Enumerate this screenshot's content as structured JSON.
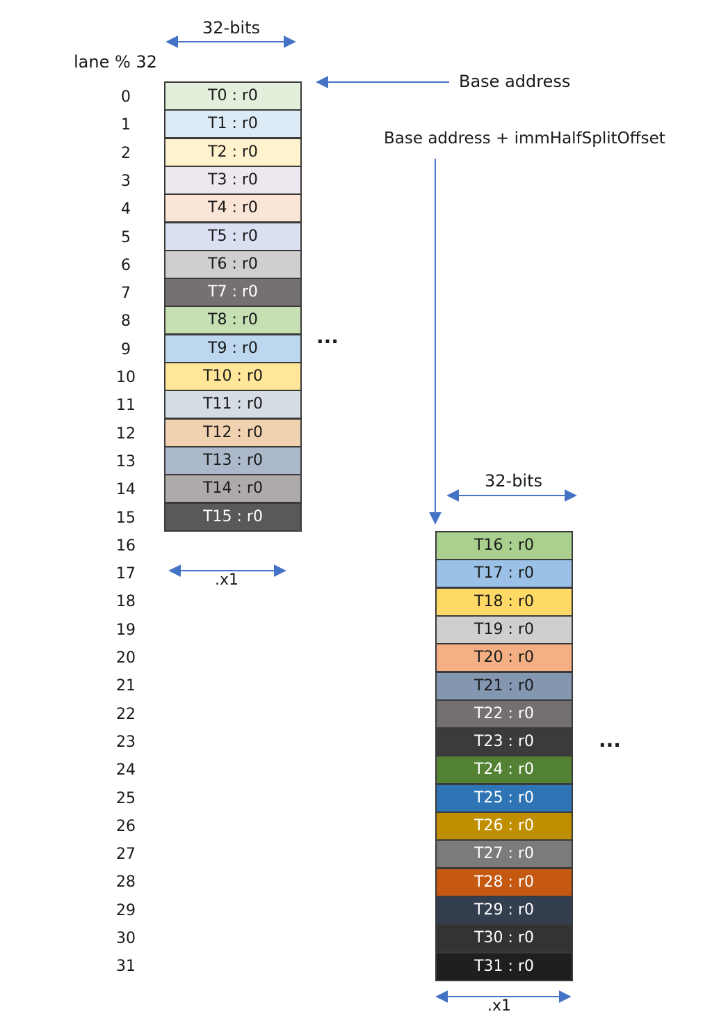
{
  "labels": {
    "width_top": "32-bits",
    "width_bottom": "32-bits",
    "lane_header": "lane % 32",
    "base_address": "Base address",
    "base_address_offset": "Base address + immHalfSplitOffset",
    "multiplier_left": ".x1",
    "multiplier_right": ".x1",
    "ellipsis_left": "...",
    "ellipsis_right": "..."
  },
  "lanes": [
    "0",
    "1",
    "2",
    "3",
    "4",
    "5",
    "6",
    "7",
    "8",
    "9",
    "10",
    "11",
    "12",
    "13",
    "14",
    "15",
    "16",
    "17",
    "18",
    "19",
    "20",
    "21",
    "22",
    "23",
    "24",
    "25",
    "26",
    "27",
    "28",
    "29",
    "30",
    "31"
  ],
  "cells_left": [
    {
      "text": "T0 : r0",
      "bg": "#e2efda",
      "fg": "#1a1a1a"
    },
    {
      "text": "T1 : r0",
      "bg": "#ddebf7",
      "fg": "#1a1a1a"
    },
    {
      "text": "T2 : r0",
      "bg": "#fff2cc",
      "fg": "#1a1a1a"
    },
    {
      "text": "T3 : r0",
      "bg": "#ede7ef",
      "fg": "#1a1a1a"
    },
    {
      "text": "T4 : r0",
      "bg": "#fbe5d6",
      "fg": "#1a1a1a"
    },
    {
      "text": "T5 : r0",
      "bg": "#dae0f2",
      "fg": "#1a1a1a"
    },
    {
      "text": "T6 : r0",
      "bg": "#d0cece",
      "fg": "#1a1a1a"
    },
    {
      "text": "T7 : r0",
      "bg": "#767171",
      "fg": "#ffffff"
    },
    {
      "text": "T8 : r0",
      "bg": "#c6e0b4",
      "fg": "#1a1a1a"
    },
    {
      "text": "T9 : r0",
      "bg": "#bdd7ee",
      "fg": "#1a1a1a"
    },
    {
      "text": "T10 : r0",
      "bg": "#ffe699",
      "fg": "#1a1a1a"
    },
    {
      "text": "T11 : r0",
      "bg": "#d6dce4",
      "fg": "#1a1a1a"
    },
    {
      "text": "T12 : r0",
      "bg": "#f0d1b0",
      "fg": "#1a1a1a"
    },
    {
      "text": "T13 : r0",
      "bg": "#acb9ca",
      "fg": "#1a1a1a"
    },
    {
      "text": "T14 : r0",
      "bg": "#aeaaaa",
      "fg": "#1a1a1a"
    },
    {
      "text": "T15 : r0",
      "bg": "#595959",
      "fg": "#ffffff"
    }
  ],
  "cells_right": [
    {
      "text": "T16 : r0",
      "bg": "#a9d08e",
      "fg": "#1a1a1a"
    },
    {
      "text": "T17 : r0",
      "bg": "#9bc2e6",
      "fg": "#1a1a1a"
    },
    {
      "text": "T18 : r0",
      "bg": "#ffd966",
      "fg": "#1a1a1a"
    },
    {
      "text": "T19 : r0",
      "bg": "#d0cece",
      "fg": "#1a1a1a"
    },
    {
      "text": "T20 : r0",
      "bg": "#f4b084",
      "fg": "#1a1a1a"
    },
    {
      "text": "T21 : r0",
      "bg": "#8497b0",
      "fg": "#1a1a1a"
    },
    {
      "text": "T22 : r0",
      "bg": "#757070",
      "fg": "#ffffff"
    },
    {
      "text": "T23 : r0",
      "bg": "#3b3b3b",
      "fg": "#ffffff"
    },
    {
      "text": "T24 : r0",
      "bg": "#548235",
      "fg": "#ffffff"
    },
    {
      "text": "T25 : r0",
      "bg": "#2f75b5",
      "fg": "#ffffff"
    },
    {
      "text": "T26 : r0",
      "bg": "#bf8f00",
      "fg": "#ffffff"
    },
    {
      "text": "T27 : r0",
      "bg": "#7b7b7b",
      "fg": "#ffffff"
    },
    {
      "text": "T28 : r0",
      "bg": "#c65911",
      "fg": "#ffffff"
    },
    {
      "text": "T29 : r0",
      "bg": "#333f4f",
      "fg": "#ffffff"
    },
    {
      "text": "T30 : r0",
      "bg": "#333333",
      "fg": "#ffffff"
    },
    {
      "text": "T31 : r0",
      "bg": "#1f1f1f",
      "fg": "#ffffff"
    }
  ],
  "colors": {
    "arrow": "#4472c4",
    "cell_border": "#3a3a3a"
  }
}
